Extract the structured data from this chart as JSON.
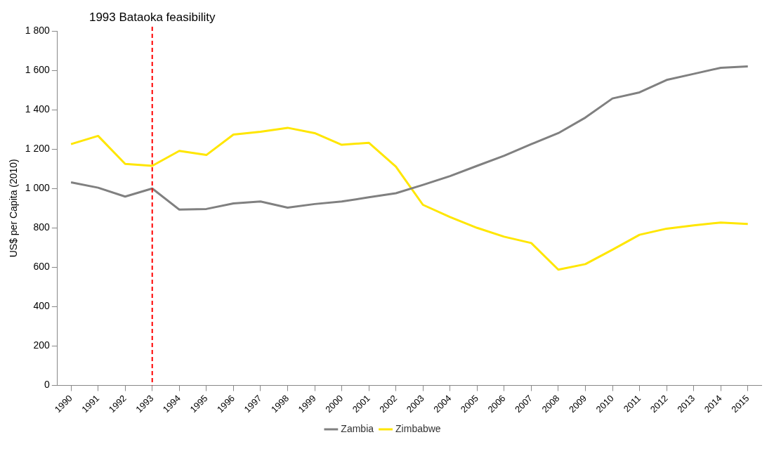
{
  "chart_data": {
    "type": "line",
    "ylabel": "US$ per Capita (2010)",
    "categories": [
      "1990",
      "1991",
      "1992",
      "1993",
      "1994",
      "1995",
      "1996",
      "1997",
      "1998",
      "1999",
      "2000",
      "2001",
      "2002",
      "2003",
      "2004",
      "2005",
      "2006",
      "2007",
      "2008",
      "2009",
      "2010",
      "2011",
      "2012",
      "2013",
      "2014",
      "2015"
    ],
    "series": [
      {
        "name": "Zambia",
        "color": "#808080",
        "values": [
          1031,
          1004,
          959,
          1000,
          893,
          896,
          924,
          934,
          903,
          921,
          934,
          955,
          976,
          1018,
          1063,
          1115,
          1166,
          1225,
          1281,
          1360,
          1457,
          1488,
          1551,
          1582,
          1613,
          1620
        ]
      },
      {
        "name": "Zimbabwe",
        "color": "#ffe600",
        "values": [
          1225,
          1267,
          1125,
          1115,
          1191,
          1170,
          1274,
          1288,
          1308,
          1281,
          1222,
          1232,
          1111,
          917,
          855,
          800,
          755,
          723,
          588,
          616,
          689,
          765,
          796,
          813,
          827,
          820
        ]
      }
    ],
    "ylim": [
      0,
      1800
    ],
    "yticks": [
      0,
      200,
      400,
      600,
      800,
      {
        "value": 1000,
        "label": "1 000"
      },
      {
        "value": 1200,
        "label": "1 200"
      },
      {
        "value": 1400,
        "label": "1 400"
      },
      {
        "value": 1600,
        "label": "1 600"
      },
      {
        "value": 1800,
        "label": "1 800"
      }
    ],
    "ref_lines": [
      {
        "axis": "x",
        "value": "1993",
        "label": "1993 Bataoka feasibility",
        "color": "#ff0000",
        "line_style": "dashed"
      }
    ],
    "grid": false,
    "legend": "bottom",
    "marker": "none",
    "line_style": "solid"
  }
}
